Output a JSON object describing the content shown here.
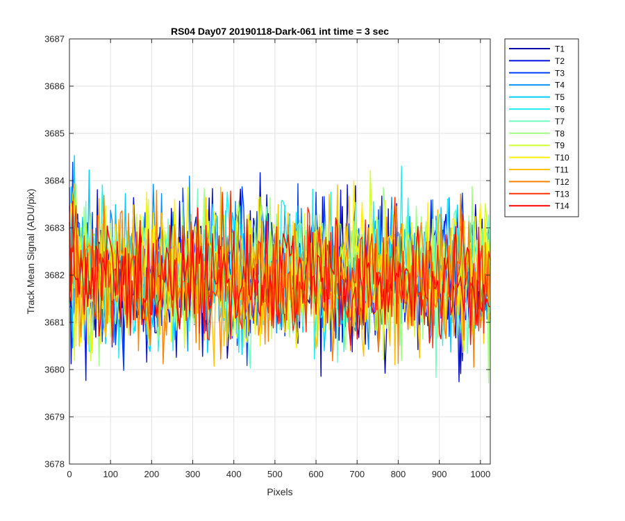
{
  "chart_data": {
    "type": "line",
    "title": "RS04 Day07 20190118-Dark-061 int time = 3 sec",
    "xlabel": "Pixels",
    "ylabel": "Track Mean Signal (ADU/pix)",
    "xlim": [
      0,
      1024
    ],
    "ylim": [
      3678,
      3687
    ],
    "xticks": [
      0,
      100,
      200,
      300,
      400,
      500,
      600,
      700,
      800,
      900,
      1000
    ],
    "yticks": [
      3678,
      3679,
      3680,
      3681,
      3682,
      3683,
      3684,
      3685,
      3686,
      3687
    ],
    "grid": true,
    "legend_position": "outside-right",
    "mean_level": 3681.9,
    "noise_band": [
      3680.1,
      3683.7
    ],
    "series": [
      {
        "name": "T1",
        "color": "#0000AA",
        "mean": 3682.0,
        "spread": 1.0
      },
      {
        "name": "T2",
        "color": "#0010E0",
        "mean": 3682.0,
        "spread": 1.0
      },
      {
        "name": "T3",
        "color": "#0040FF",
        "mean": 3682.0,
        "spread": 1.0
      },
      {
        "name": "T4",
        "color": "#0090FF",
        "mean": 3682.0,
        "spread": 1.0
      },
      {
        "name": "T5",
        "color": "#00CCFF",
        "mean": 3682.0,
        "spread": 1.0
      },
      {
        "name": "T6",
        "color": "#20F0F0",
        "mean": 3682.0,
        "spread": 1.0
      },
      {
        "name": "T7",
        "color": "#70FFC0",
        "mean": 3682.0,
        "spread": 1.0
      },
      {
        "name": "T8",
        "color": "#A0FF80",
        "mean": 3682.0,
        "spread": 1.0
      },
      {
        "name": "T9",
        "color": "#D0FF30",
        "mean": 3682.0,
        "spread": 1.0
      },
      {
        "name": "T10",
        "color": "#FFF000",
        "mean": 3682.0,
        "spread": 1.0
      },
      {
        "name": "T11",
        "color": "#FFC000",
        "mean": 3681.9,
        "spread": 1.0
      },
      {
        "name": "T12",
        "color": "#FF8000",
        "mean": 3681.9,
        "spread": 1.0
      },
      {
        "name": "T13",
        "color": "#FF3000",
        "mean": 3681.9,
        "spread": 0.9
      },
      {
        "name": "T14",
        "color": "#FF0000",
        "mean": 3681.9,
        "spread": 0.8
      }
    ]
  }
}
